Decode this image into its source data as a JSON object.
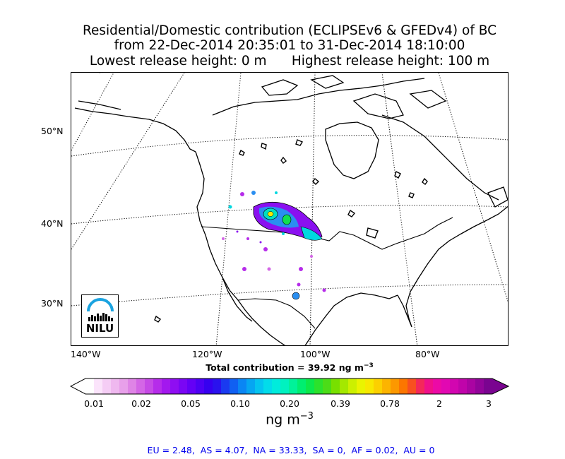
{
  "title": {
    "line1": "Residential/Domestic contribution (ECLIPSEv6 & GFEDv4) of BC",
    "line2": "from 22-Dec-2014 20:35:01 to 31-Dec-2014 18:10:00",
    "line3_left": "Lowest release height: 0 m",
    "line3_right": "Highest release height: 100 m"
  },
  "map": {
    "lat_labels": [
      "50°N",
      "40°N",
      "30°N"
    ],
    "lon_labels": [
      "140°W",
      "120°W",
      "100°W",
      "80°W"
    ],
    "logo_text": "NILU",
    "logo_color": "#1aa3e0"
  },
  "total_contribution": {
    "label": "Total contribution = 39.92 ng m",
    "exponent": "−3"
  },
  "colorbar": {
    "ticks": [
      "0.01",
      "0.02",
      "0.05",
      "0.10",
      "0.20",
      "0.39",
      "0.78",
      "2",
      "3"
    ],
    "unit_label": "ng m",
    "unit_exponent": "−3",
    "colors": [
      "#ffffff",
      "#fbe4fb",
      "#f5cdf5",
      "#efb8ef",
      "#e8a0ea",
      "#df84e6",
      "#d466e6",
      "#c64ae6",
      "#b62cea",
      "#a318ee",
      "#8f0ef2",
      "#7a06f4",
      "#6400f6",
      "#4d00f4",
      "#3600f0",
      "#2a12ee",
      "#1a3af0",
      "#1060f2",
      "#0a86f4",
      "#06a6f2",
      "#04c4f0",
      "#02dcea",
      "#00ecdc",
      "#00f2c0",
      "#00f29a",
      "#00ee70",
      "#0ce84a",
      "#2ce22c",
      "#4cdc18",
      "#78e000",
      "#a4e800",
      "#ccf000",
      "#eaf400",
      "#f8e800",
      "#fcd000",
      "#fcb400",
      "#fc9800",
      "#fc7600",
      "#f85020",
      "#f4285a",
      "#f0108a",
      "#ec0aa6",
      "#e208b2",
      "#d206b0",
      "#c004aa",
      "#aa04a2",
      "#92049a",
      "#7a0490"
    ]
  },
  "footer": "EU = 2.48,  AS = 4.07,  NA = 33.33,  SA = 0,  AF = 0.02,  AU = 0"
}
